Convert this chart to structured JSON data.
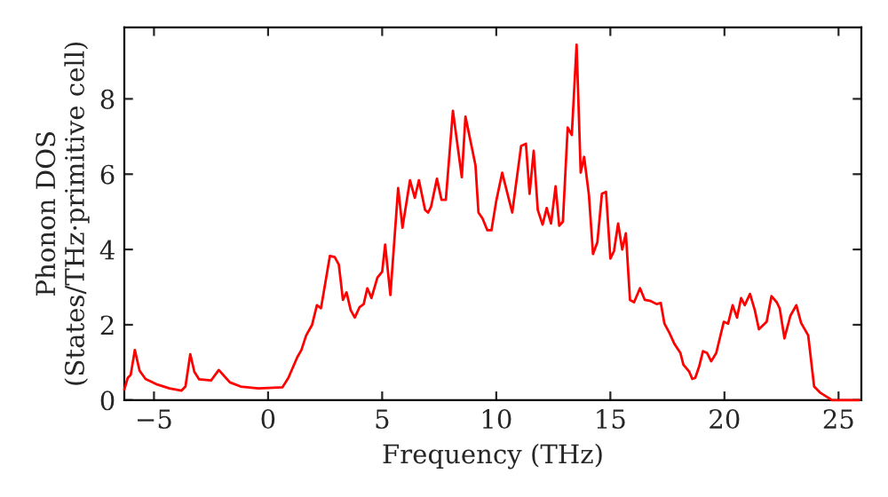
{
  "chart_data": {
    "type": "line",
    "xlabel": "Frequency (THz)",
    "ylabel": "Phonon DOS\n(States/THz·primitive cell)",
    "xlim": [
      -6.3,
      26
    ],
    "ylim": [
      0,
      9.9
    ],
    "xticks": [
      -5,
      0,
      5,
      10,
      15,
      20,
      25
    ],
    "yticks": [
      0,
      2,
      4,
      6,
      8
    ],
    "grid": false,
    "marker": "none",
    "line_style": "solid",
    "series": [
      {
        "color": "#ff0000",
        "x": [
          -6.3,
          -6.15,
          -6.02,
          -5.84,
          -5.63,
          -5.37,
          -4.84,
          -4.32,
          -3.8,
          -3.62,
          -3.41,
          -3.23,
          -3.02,
          -2.5,
          -2.16,
          -1.67,
          -1.2,
          -0.42,
          0.63,
          0.89,
          1.28,
          1.46,
          1.67,
          1.93,
          2.14,
          2.32,
          2.71,
          2.92,
          3.1,
          3.28,
          3.44,
          3.62,
          3.8,
          4.01,
          4.19,
          4.35,
          4.53,
          4.79,
          5.0,
          5.13,
          5.36,
          5.7,
          5.89,
          6.22,
          6.43,
          6.61,
          6.88,
          7.01,
          7.14,
          7.4,
          7.6,
          7.79,
          8.1,
          8.49,
          8.65,
          8.96,
          9.09,
          9.22,
          9.4,
          9.61,
          9.79,
          10.0,
          10.26,
          10.7,
          11.09,
          11.3,
          11.46,
          11.64,
          11.82,
          12.03,
          12.21,
          12.4,
          12.6,
          12.76,
          12.92,
          13.13,
          13.31,
          13.52,
          13.7,
          13.85,
          14.06,
          14.24,
          14.43,
          14.63,
          14.81,
          15.0,
          15.16,
          15.34,
          15.52,
          15.68,
          15.86,
          16.04,
          16.3,
          16.51,
          16.77,
          17.03,
          17.21,
          17.37,
          17.6,
          17.81,
          18.07,
          18.2,
          18.46,
          18.59,
          18.72,
          18.9,
          19.06,
          19.24,
          19.42,
          19.64,
          19.97,
          20.16,
          20.36,
          20.55,
          20.73,
          20.89,
          21.12,
          21.33,
          21.51,
          21.85,
          22.06,
          22.29,
          22.42,
          22.63,
          22.89,
          23.15,
          23.36,
          23.67,
          23.93,
          24.19,
          24.58,
          24.71,
          25.9
        ],
        "values": [
          0.28,
          0.59,
          0.67,
          1.33,
          0.78,
          0.56,
          0.41,
          0.31,
          0.25,
          0.36,
          1.22,
          0.75,
          0.55,
          0.52,
          0.8,
          0.47,
          0.36,
          0.31,
          0.34,
          0.59,
          1.14,
          1.33,
          1.72,
          2.0,
          2.52,
          2.44,
          3.83,
          3.8,
          3.6,
          2.66,
          2.86,
          2.39,
          2.19,
          2.47,
          2.55,
          2.97,
          2.71,
          3.25,
          3.41,
          4.13,
          2.79,
          5.63,
          4.58,
          5.84,
          5.37,
          5.84,
          5.05,
          4.98,
          5.13,
          5.88,
          5.32,
          5.32,
          7.68,
          5.92,
          7.53,
          6.62,
          6.23,
          4.98,
          4.82,
          4.51,
          4.51,
          5.29,
          6.04,
          4.98,
          6.75,
          6.81,
          5.48,
          6.62,
          5.05,
          4.66,
          5.1,
          4.69,
          5.68,
          4.63,
          4.74,
          7.24,
          7.04,
          9.44,
          6.04,
          6.46,
          5.45,
          3.88,
          4.19,
          5.48,
          5.53,
          3.76,
          3.96,
          4.69,
          4.0,
          4.43,
          2.66,
          2.6,
          2.97,
          2.66,
          2.63,
          2.55,
          2.58,
          2.03,
          1.77,
          1.49,
          1.25,
          0.94,
          0.75,
          0.56,
          0.59,
          0.91,
          1.3,
          1.25,
          1.03,
          1.25,
          2.08,
          2.03,
          2.52,
          2.19,
          2.71,
          2.52,
          2.82,
          2.39,
          1.88,
          2.08,
          2.76,
          2.6,
          2.44,
          1.64,
          2.24,
          2.52,
          2.05,
          1.72,
          0.36,
          0.2,
          0.05,
          0.0,
          0.0
        ]
      }
    ]
  }
}
